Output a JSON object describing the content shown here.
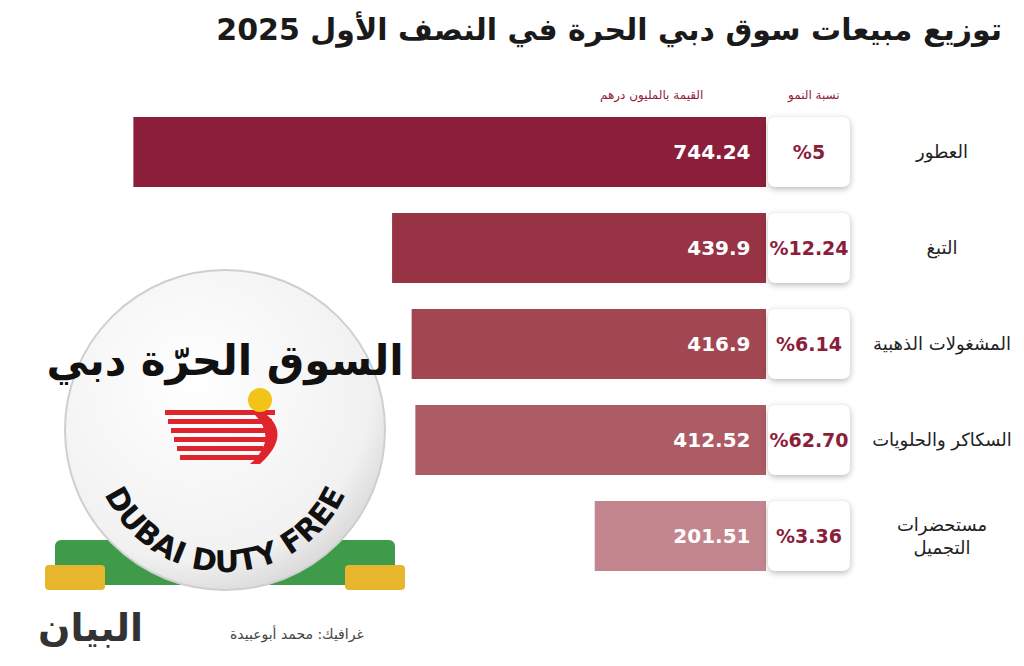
{
  "chart_data": {
    "type": "bar",
    "orientation": "horizontal",
    "title": "توزيع مبيعات سوق دبي الحرة في النصف الأول 2025",
    "categories": [
      "العطور",
      "التبغ",
      "المشغولات الذهبية",
      "السكاكر والحلويات",
      "مستحضرات التجميل"
    ],
    "values": [
      744.24,
      439.9,
      416.9,
      412.52,
      201.51
    ],
    "colors": [
      "#8b1e3a",
      "#983245",
      "#a24652",
      "#ad5b65",
      "#c4868e"
    ],
    "data_labels": true,
    "tick_labels": false,
    "grid": false,
    "xlim": [
      0,
      760
    ],
    "value_header": "القيمة بالمليون درهم",
    "growth_header": "نسبة النمو",
    "growth": [
      5,
      12.24,
      6.14,
      62.7,
      3.36
    ],
    "growth_labels": [
      "%5",
      "%12.24",
      "%6.14",
      "%62.70",
      "%3.36"
    ],
    "credit": "غرافيك: محمد أبوعبيدة",
    "publisher": "البيان",
    "logo": [
      "السوق الحرّة دبي",
      "DUBAI DUTY FREE"
    ]
  }
}
